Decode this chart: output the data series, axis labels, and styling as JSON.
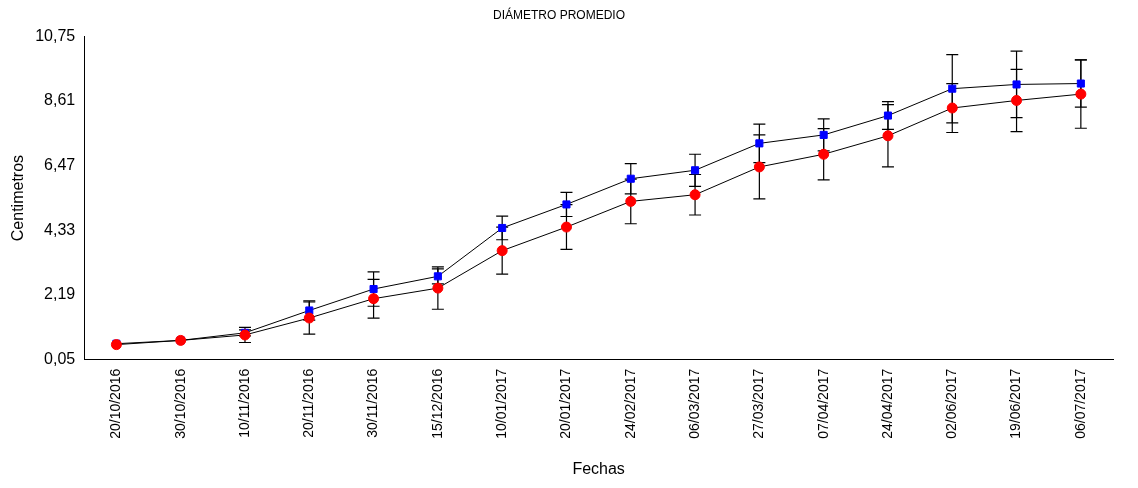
{
  "chart_data": {
    "type": "line",
    "title": "DIÁMETRO PROMEDIO",
    "xlabel": "Fechas",
    "ylabel": "Centimetros",
    "categories": [
      "20/10/2016",
      "30/10/2016",
      "10/11/2016",
      "20/11/2016",
      "30/11/2016",
      "15/12/2016",
      "10/01/2017",
      "20/01/2017",
      "24/02/2017",
      "06/03/2017",
      "27/03/2017",
      "07/04/2017",
      "24/04/2017",
      "02/06/2017",
      "19/06/2017",
      "06/07/2017"
    ],
    "series": [
      {
        "color": "#0000ff",
        "marker": "square",
        "values": [
          0.58,
          0.69,
          0.94,
          1.68,
          2.39,
          2.81,
          4.41,
          5.19,
          6.04,
          6.32,
          7.21,
          7.49,
          8.13,
          9.02,
          9.16,
          9.19
        ],
        "errors": [
          null,
          null,
          0.1,
          0.32,
          0.57,
          0.25,
          0.39,
          0.4,
          0.5,
          0.53,
          0.64,
          0.53,
          0.46,
          1.13,
          1.1,
          0.78
        ]
      },
      {
        "color": "#ff0000",
        "marker": "circle",
        "values": [
          0.55,
          0.69,
          0.87,
          1.43,
          2.07,
          2.42,
          3.66,
          4.44,
          5.29,
          5.51,
          6.43,
          6.85,
          7.46,
          8.38,
          8.63,
          8.84
        ],
        "errors": [
          null,
          null,
          0.25,
          0.53,
          0.64,
          0.7,
          0.78,
          0.74,
          0.74,
          0.67,
          1.06,
          0.85,
          1.03,
          0.81,
          1.03,
          1.13
        ]
      }
    ],
    "ylim": [
      0.05,
      10.75
    ],
    "yticks": [
      {
        "value": 0.05,
        "label": "0,05"
      },
      {
        "value": 2.19,
        "label": "2,19"
      },
      {
        "value": 4.33,
        "label": "4,33"
      },
      {
        "value": 6.47,
        "label": "6,47"
      },
      {
        "value": 8.61,
        "label": "8,61"
      },
      {
        "value": 10.75,
        "label": "10,75"
      }
    ],
    "grid": false,
    "legend": false,
    "line_style": "solid"
  }
}
